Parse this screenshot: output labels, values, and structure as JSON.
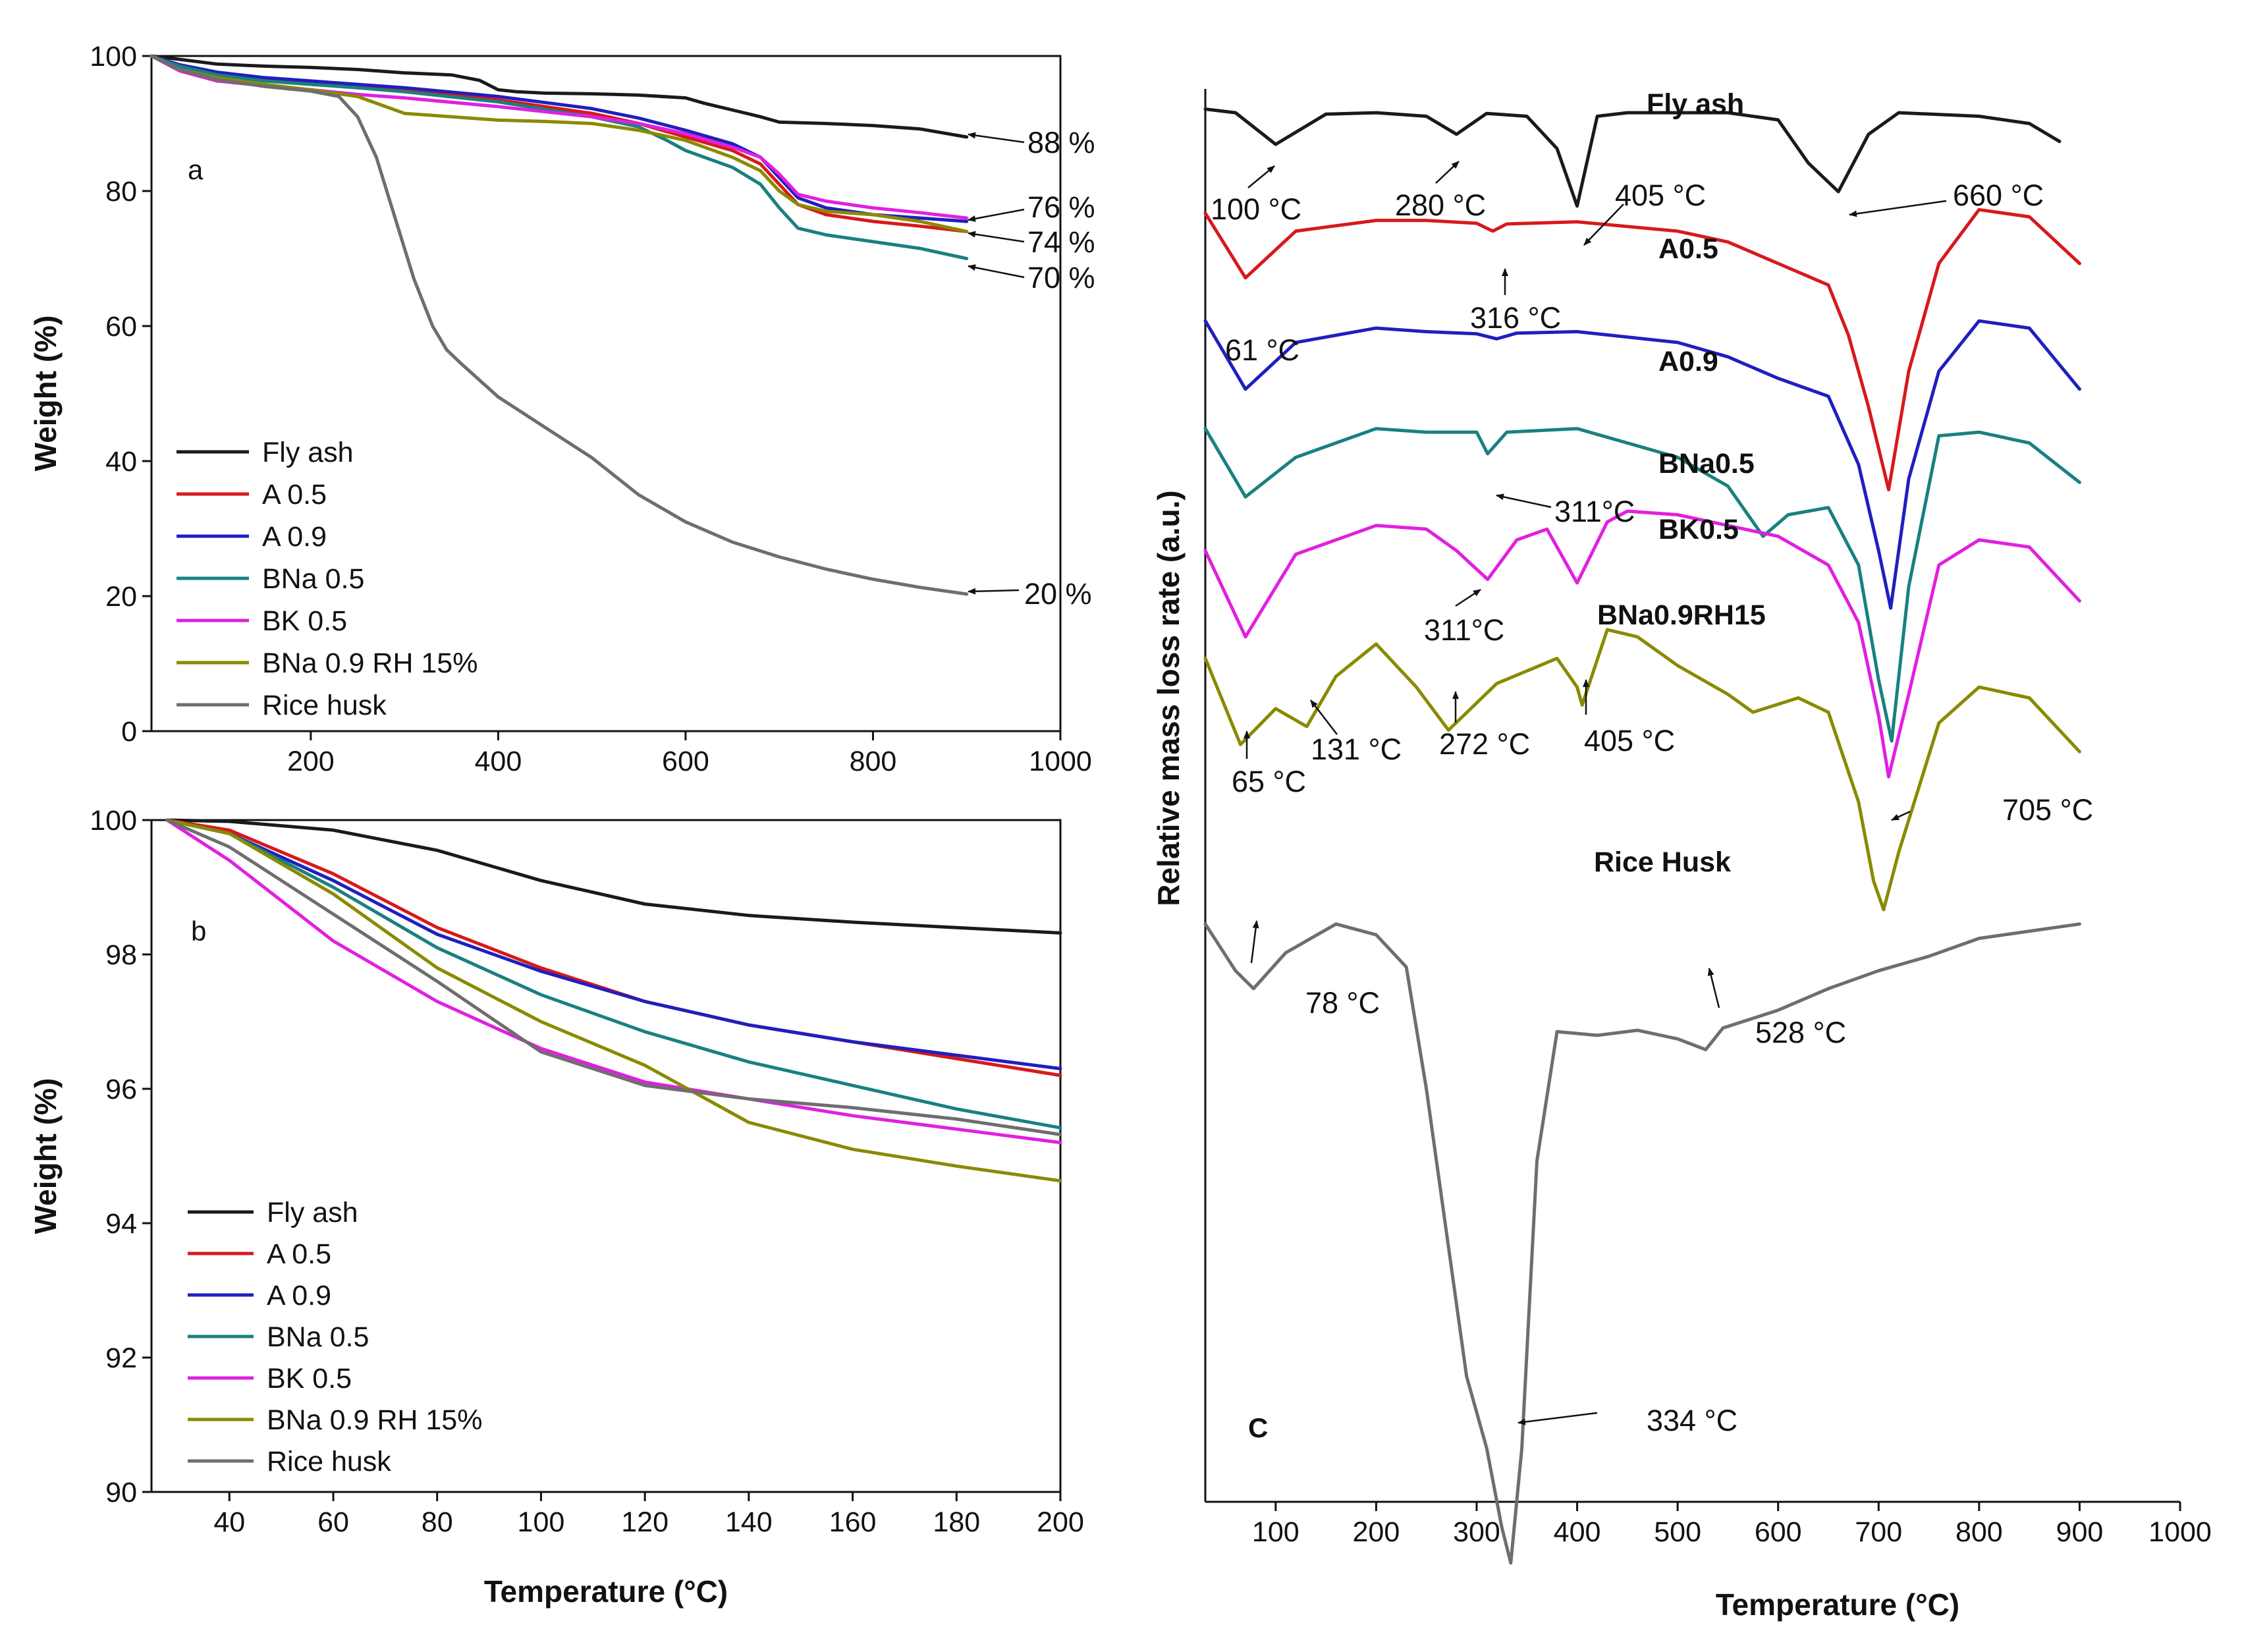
{
  "chart_data": [
    {
      "id": "a",
      "type": "line",
      "panel_label": "a",
      "xlabel": "",
      "ylabel": "Weight (%)",
      "xlim": [
        30,
        1000
      ],
      "ylim": [
        0,
        100
      ],
      "xticks": [
        200,
        400,
        600,
        800,
        1000
      ],
      "yticks": [
        0,
        20,
        40,
        60,
        80,
        100
      ],
      "legend_position": "bottom-left",
      "series": [
        {
          "name": "Fly ash",
          "color": "#1a1a1a",
          "x": [
            30,
            60,
            100,
            150,
            200,
            250,
            300,
            350,
            380,
            400,
            420,
            450,
            500,
            550,
            600,
            620,
            650,
            680,
            700,
            750,
            800,
            850,
            900
          ],
          "y": [
            100,
            99.5,
            98.8,
            98.5,
            98.3,
            98.0,
            97.5,
            97.2,
            96.4,
            95.0,
            94.7,
            94.5,
            94.4,
            94.2,
            93.8,
            93.0,
            92.0,
            91.0,
            90.2,
            90.0,
            89.7,
            89.2,
            88.0
          ]
        },
        {
          "name": "A 0.5",
          "color": "#d7191c",
          "x": [
            30,
            60,
            100,
            150,
            200,
            250,
            300,
            400,
            500,
            550,
            600,
            650,
            680,
            700,
            720,
            750,
            800,
            850,
            900
          ],
          "y": [
            100,
            98.5,
            97.3,
            96.5,
            96.0,
            95.5,
            95.0,
            93.5,
            91.5,
            90.0,
            88.0,
            86.0,
            84.0,
            81.0,
            78.0,
            76.5,
            75.5,
            74.8,
            74.0
          ]
        },
        {
          "name": "A 0.9",
          "color": "#1f1fbf",
          "x": [
            30,
            60,
            100,
            150,
            200,
            250,
            300,
            400,
            500,
            550,
            600,
            650,
            680,
            700,
            720,
            750,
            800,
            850,
            900
          ],
          "y": [
            100,
            98.7,
            97.6,
            96.8,
            96.3,
            95.8,
            95.3,
            94.0,
            92.2,
            90.8,
            89.0,
            87.0,
            85.0,
            82.0,
            79.0,
            77.5,
            76.5,
            76.0,
            75.5
          ]
        },
        {
          "name": "BNa 0.5",
          "color": "#1a8080",
          "x": [
            30,
            60,
            100,
            150,
            200,
            250,
            300,
            400,
            500,
            550,
            580,
            600,
            650,
            680,
            700,
            720,
            750,
            800,
            850,
            900
          ],
          "y": [
            100,
            98.5,
            97.2,
            96.3,
            95.8,
            95.3,
            94.7,
            93.2,
            91.0,
            89.5,
            87.5,
            86.0,
            83.5,
            81.0,
            77.5,
            74.5,
            73.5,
            72.5,
            71.5,
            70.0
          ]
        },
        {
          "name": "BK 0.5",
          "color": "#e020e0",
          "x": [
            30,
            60,
            100,
            150,
            200,
            250,
            300,
            400,
            500,
            550,
            600,
            650,
            680,
            700,
            720,
            750,
            800,
            850,
            900
          ],
          "y": [
            100,
            97.8,
            96.3,
            95.6,
            95.0,
            94.3,
            93.8,
            92.5,
            91.0,
            90.0,
            88.5,
            86.5,
            85.0,
            82.5,
            79.5,
            78.5,
            77.5,
            76.8,
            76.0
          ]
        },
        {
          "name": "BNa 0.9 RH 15%",
          "color": "#8a8a00",
          "x": [
            30,
            60,
            100,
            150,
            200,
            250,
            280,
            300,
            350,
            400,
            450,
            500,
            550,
            600,
            650,
            680,
            700,
            720,
            750,
            800,
            850,
            900
          ],
          "y": [
            100,
            98.0,
            96.8,
            95.8,
            95.0,
            94.0,
            92.5,
            91.5,
            91.0,
            90.5,
            90.3,
            90.0,
            89.0,
            87.5,
            85.0,
            83.0,
            80.0,
            78.0,
            77.0,
            76.5,
            75.5,
            74.0
          ]
        },
        {
          "name": "Rice husk",
          "color": "#6e6e6e",
          "x": [
            30,
            60,
            100,
            150,
            200,
            230,
            250,
            270,
            290,
            310,
            330,
            345,
            360,
            400,
            450,
            500,
            550,
            600,
            650,
            700,
            750,
            800,
            850,
            900
          ],
          "y": [
            100,
            98.0,
            96.5,
            95.5,
            94.8,
            94.0,
            91.0,
            85.0,
            76.0,
            67.0,
            60.0,
            56.5,
            54.5,
            49.5,
            45.0,
            40.5,
            35.0,
            31.0,
            28.0,
            25.8,
            24.0,
            22.5,
            21.3,
            20.3
          ]
        }
      ],
      "annotations": [
        {
          "text": "88 %",
          "x": 900,
          "y": 88
        },
        {
          "text": "76 %",
          "x": 900,
          "y": 76
        },
        {
          "text": "74 %",
          "x": 900,
          "y": 74
        },
        {
          "text": "70 %",
          "x": 900,
          "y": 70
        },
        {
          "text": "20 %",
          "x": 900,
          "y": 20
        }
      ]
    },
    {
      "id": "b",
      "type": "line",
      "panel_label": "b",
      "xlabel": "Temperature (°C)",
      "ylabel": "Weight (%)",
      "xlim": [
        25,
        200
      ],
      "ylim": [
        90,
        100
      ],
      "xticks": [
        40,
        60,
        80,
        100,
        120,
        140,
        160,
        180,
        200
      ],
      "yticks": [
        90,
        92,
        94,
        96,
        98,
        100
      ],
      "legend_position": "bottom-left",
      "series": [
        {
          "name": "Fly ash",
          "color": "#1a1a1a",
          "x": [
            28,
            40,
            60,
            80,
            100,
            120,
            140,
            160,
            180,
            200
          ],
          "y": [
            100,
            99.98,
            99.85,
            99.55,
            99.1,
            98.75,
            98.58,
            98.48,
            98.4,
            98.32
          ]
        },
        {
          "name": "A 0.5",
          "color": "#d7191c",
          "x": [
            28,
            40,
            60,
            80,
            100,
            120,
            140,
            160,
            180,
            200
          ],
          "y": [
            100,
            99.85,
            99.2,
            98.4,
            97.8,
            97.3,
            96.95,
            96.7,
            96.45,
            96.2
          ]
        },
        {
          "name": "A 0.9",
          "color": "#1f1fbf",
          "x": [
            28,
            40,
            60,
            80,
            100,
            120,
            140,
            160,
            180,
            200
          ],
          "y": [
            100,
            99.8,
            99.1,
            98.3,
            97.75,
            97.3,
            96.95,
            96.7,
            96.5,
            96.3
          ]
        },
        {
          "name": "BNa 0.5",
          "color": "#1a8080",
          "x": [
            28,
            40,
            60,
            80,
            100,
            120,
            140,
            160,
            180,
            200
          ],
          "y": [
            100,
            99.8,
            99.0,
            98.1,
            97.4,
            96.85,
            96.4,
            96.05,
            95.7,
            95.42
          ]
        },
        {
          "name": "BK 0.5",
          "color": "#e020e0",
          "x": [
            28,
            40,
            60,
            80,
            100,
            120,
            140,
            160,
            180,
            200
          ],
          "y": [
            100,
            99.4,
            98.2,
            97.3,
            96.6,
            96.1,
            95.85,
            95.6,
            95.4,
            95.2
          ]
        },
        {
          "name": "BNa 0.9 RH 15%",
          "color": "#8a8a00",
          "x": [
            28,
            40,
            60,
            80,
            100,
            120,
            140,
            160,
            180,
            200
          ],
          "y": [
            100,
            99.8,
            98.9,
            97.8,
            97.0,
            96.35,
            95.5,
            95.1,
            94.85,
            94.63
          ]
        },
        {
          "name": "Rice husk",
          "color": "#6e6e6e",
          "x": [
            28,
            40,
            60,
            80,
            100,
            120,
            140,
            160,
            180,
            200
          ],
          "y": [
            100,
            99.6,
            98.6,
            97.6,
            96.55,
            96.05,
            95.85,
            95.72,
            95.55,
            95.32
          ]
        }
      ]
    },
    {
      "id": "c",
      "type": "line",
      "panel_label": "C",
      "xlabel": "Temperature (°C)",
      "ylabel": "Relative mass loss rate (a.u.)",
      "xlim": [
        30,
        1000
      ],
      "xticks": [
        100,
        200,
        300,
        400,
        500,
        600,
        700,
        800,
        900,
        1000
      ],
      "yticks": [],
      "series": [
        {
          "name": "Fly ash",
          "label": "Fly ash",
          "color": "#1a1a1a",
          "x": [
            30,
            60,
            100,
            150,
            200,
            250,
            280,
            310,
            350,
            380,
            400,
            420,
            450,
            550,
            600,
            630,
            660,
            690,
            720,
            800,
            850,
            880
          ],
          "y": [
            101.5,
            101.0,
            96.6,
            100.8,
            101.0,
            100.5,
            98.0,
            100.9,
            100.5,
            96.0,
            88.0,
            100.5,
            101.0,
            101.0,
            100.0,
            94.0,
            90.0,
            98.0,
            101.0,
            100.5,
            99.5,
            97.0
          ]
        },
        {
          "name": "A0.5",
          "label": "A0.5",
          "color": "#d7191c",
          "x": [
            30,
            70,
            120,
            200,
            250,
            300,
            316,
            330,
            400,
            500,
            550,
            600,
            650,
            670,
            690,
            710,
            730,
            760,
            800,
            850,
            900
          ],
          "y": [
            87.0,
            78.0,
            84.5,
            86.0,
            86.0,
            85.6,
            84.5,
            85.5,
            85.8,
            84.5,
            83.0,
            80.0,
            77.0,
            70.0,
            60.0,
            48.5,
            65.0,
            80.0,
            87.5,
            86.5,
            80.0
          ]
        },
        {
          "name": "A0.9",
          "label": "A0.9",
          "color": "#1f1fbf",
          "x": [
            30,
            70,
            120,
            200,
            250,
            300,
            320,
            340,
            400,
            500,
            550,
            600,
            650,
            680,
            700,
            712,
            730,
            760,
            800,
            850,
            900
          ],
          "y": [
            72.0,
            62.5,
            69.0,
            71.0,
            70.5,
            70.2,
            69.5,
            70.3,
            70.5,
            69.0,
            67.0,
            64.0,
            61.5,
            52.0,
            40.0,
            32.0,
            50.0,
            65.0,
            72.0,
            71.0,
            62.5
          ]
        },
        {
          "name": "BNa0.5",
          "label": "BNa0.5",
          "color": "#1a8080",
          "x": [
            30,
            70,
            120,
            200,
            250,
            300,
            311,
            330,
            400,
            500,
            550,
            585,
            610,
            650,
            680,
            700,
            713,
            730,
            760,
            800,
            850,
            900
          ],
          "y": [
            57.0,
            47.5,
            53.0,
            57.0,
            56.5,
            56.5,
            53.5,
            56.5,
            57.0,
            53.0,
            49.0,
            42.0,
            45.0,
            46.0,
            38.0,
            22.0,
            13.5,
            35.0,
            56.0,
            56.5,
            55.0,
            49.5
          ]
        },
        {
          "name": "BK0.5",
          "label": "BK0.5",
          "color": "#e020e0",
          "x": [
            30,
            70,
            120,
            200,
            250,
            280,
            311,
            340,
            370,
            400,
            430,
            450,
            500,
            550,
            600,
            650,
            680,
            700,
            710,
            730,
            760,
            800,
            850,
            900
          ],
          "y": [
            40.0,
            28.0,
            39.5,
            43.5,
            43.0,
            40.0,
            36.0,
            41.5,
            43.0,
            35.5,
            44.0,
            45.5,
            45.0,
            43.5,
            42.0,
            38.0,
            30.0,
            17.0,
            8.5,
            20.0,
            38.0,
            41.5,
            40.5,
            33.0
          ]
        },
        {
          "name": "BNa0.9RH15",
          "label": "BNa0.9RH15",
          "color": "#8a8a00",
          "x": [
            30,
            65,
            100,
            131,
            160,
            200,
            240,
            272,
            320,
            380,
            400,
            405,
            430,
            460,
            500,
            550,
            575,
            620,
            650,
            680,
            695,
            705,
            720,
            760,
            800,
            850,
            900
          ],
          "y": [
            25.0,
            13.0,
            18.0,
            15.5,
            22.5,
            27.0,
            21.0,
            15.0,
            21.5,
            25.0,
            21.0,
            18.5,
            29.0,
            28.0,
            24.0,
            20.0,
            17.5,
            19.5,
            17.5,
            5.0,
            -6.0,
            -10.0,
            -2.0,
            16.0,
            21.0,
            19.5,
            12.0
          ]
        },
        {
          "name": "Rice Husk",
          "label": "Rice Husk",
          "color": "#6e6e6e",
          "x": [
            30,
            60,
            78,
            110,
            160,
            200,
            230,
            250,
            270,
            290,
            310,
            325,
            334,
            345,
            360,
            380,
            420,
            460,
            500,
            528,
            545,
            600,
            650,
            700,
            750,
            800,
            850,
            900
          ],
          "y": [
            -12.0,
            -18.5,
            -21.0,
            -16.0,
            -12.0,
            -13.5,
            -18.0,
            -35.0,
            -55.0,
            -75.0,
            -85.0,
            -96.0,
            -101.0,
            -85.0,
            -45.0,
            -27.0,
            -27.5,
            -26.8,
            -28.0,
            -29.5,
            -26.5,
            -24.0,
            -21.0,
            -18.5,
            -16.5,
            -14.0,
            -13.0,
            -12.0
          ]
        }
      ],
      "annotations": [
        {
          "text": "100 °C",
          "x": 100
        },
        {
          "text": "280 °C",
          "x": 280
        },
        {
          "text": "405 °C",
          "x": 405
        },
        {
          "text": "660 °C",
          "x": 660
        },
        {
          "text": "61 °C",
          "x": 61
        },
        {
          "text": "316 °C",
          "x": 316
        },
        {
          "text": "311°C",
          "x": 311
        },
        {
          "text": "311°C",
          "x": 311
        },
        {
          "text": "65 °C",
          "x": 65
        },
        {
          "text": "131 °C",
          "x": 131
        },
        {
          "text": "272 °C",
          "x": 272
        },
        {
          "text": "405 °C",
          "x": 405
        },
        {
          "text": "705 °C",
          "x": 705
        },
        {
          "text": "78 °C",
          "x": 78
        },
        {
          "text": "528 °C",
          "x": 528
        },
        {
          "text": "334 °C",
          "x": 334
        }
      ]
    }
  ]
}
